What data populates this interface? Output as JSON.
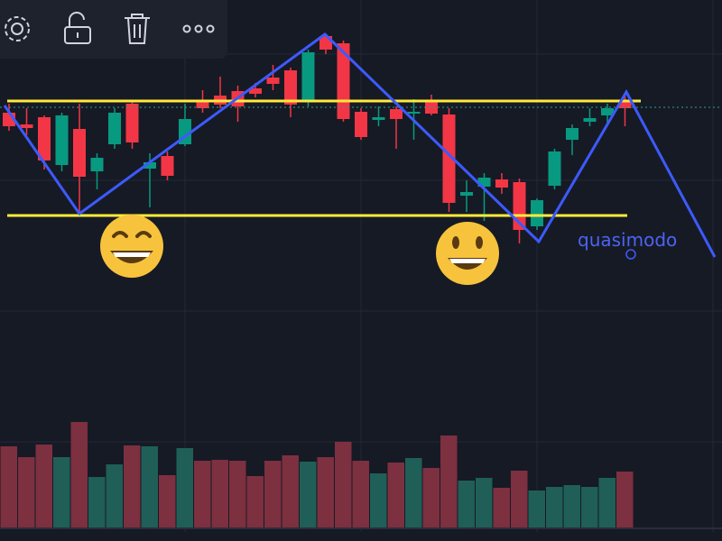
{
  "chart_data": {
    "type": "candlestick",
    "annotation": "quasimodo",
    "ylim": [
      0,
      600
    ],
    "volume_lim": [
      0,
      585
    ],
    "up_color": "#089981",
    "down_color": "#f23645",
    "volume_up_color": "#1f5f57",
    "volume_down_color": "#7d3040",
    "candles": [
      {
        "open": 475,
        "high": 485,
        "low": 455,
        "close": 460
      },
      {
        "open": 462,
        "high": 480,
        "low": 450,
        "close": 458
      },
      {
        "open": 470,
        "high": 472,
        "low": 412,
        "close": 422
      },
      {
        "open": 417,
        "high": 475,
        "low": 410,
        "close": 472
      },
      {
        "open": 457,
        "high": 485,
        "low": 365,
        "close": 404
      },
      {
        "open": 410,
        "high": 430,
        "low": 390,
        "close": 425
      },
      {
        "open": 440,
        "high": 480,
        "low": 435,
        "close": 475
      },
      {
        "open": 485,
        "high": 488,
        "low": 435,
        "close": 442
      },
      {
        "open": 413,
        "high": 430,
        "low": 370,
        "close": 420
      },
      {
        "open": 427,
        "high": 432,
        "low": 400,
        "close": 405
      },
      {
        "open": 440,
        "high": 485,
        "low": 438,
        "close": 468
      },
      {
        "open": 488,
        "high": 500,
        "low": 475,
        "close": 480
      },
      {
        "open": 494,
        "high": 515,
        "low": 480,
        "close": 484
      },
      {
        "open": 499,
        "high": 505,
        "low": 465,
        "close": 482
      },
      {
        "open": 502,
        "high": 508,
        "low": 492,
        "close": 496
      },
      {
        "open": 514,
        "high": 528,
        "low": 500,
        "close": 507
      },
      {
        "open": 522,
        "high": 525,
        "low": 470,
        "close": 484
      },
      {
        "open": 488,
        "high": 545,
        "low": 482,
        "close": 542
      },
      {
        "open": 560,
        "high": 562,
        "low": 540,
        "close": 545
      },
      {
        "open": 552,
        "high": 555,
        "low": 465,
        "close": 468
      },
      {
        "open": 476,
        "high": 480,
        "low": 445,
        "close": 448
      },
      {
        "open": 467,
        "high": 482,
        "low": 460,
        "close": 470
      },
      {
        "open": 479,
        "high": 482,
        "low": 435,
        "close": 468
      },
      {
        "open": 474,
        "high": 490,
        "low": 445,
        "close": 476
      },
      {
        "open": 487,
        "high": 495,
        "low": 472,
        "close": 474
      },
      {
        "open": 473,
        "high": 480,
        "low": 365,
        "close": 375
      },
      {
        "open": 383,
        "high": 400,
        "low": 365,
        "close": 387
      },
      {
        "open": 393,
        "high": 408,
        "low": 355,
        "close": 403
      },
      {
        "open": 401,
        "high": 408,
        "low": 385,
        "close": 392
      },
      {
        "open": 398,
        "high": 402,
        "low": 330,
        "close": 345
      },
      {
        "open": 349,
        "high": 380,
        "low": 345,
        "close": 378
      },
      {
        "open": 394,
        "high": 435,
        "low": 390,
        "close": 432
      },
      {
        "open": 445,
        "high": 462,
        "low": 428,
        "close": 458
      },
      {
        "open": 465,
        "high": 480,
        "low": 460,
        "close": 469
      },
      {
        "open": 472,
        "high": 485,
        "low": 462,
        "close": 480
      },
      {
        "open": 488,
        "high": 495,
        "low": 460,
        "close": 480
      }
    ],
    "volume": [
      90,
      78,
      92,
      78,
      117,
      56,
      70,
      91,
      90,
      58,
      88,
      74,
      75,
      74,
      57,
      74,
      80,
      73,
      78,
      95,
      74,
      60,
      72,
      77,
      66,
      102,
      52,
      55,
      44,
      63,
      41,
      45,
      47,
      45,
      55,
      62
    ]
  }
}
